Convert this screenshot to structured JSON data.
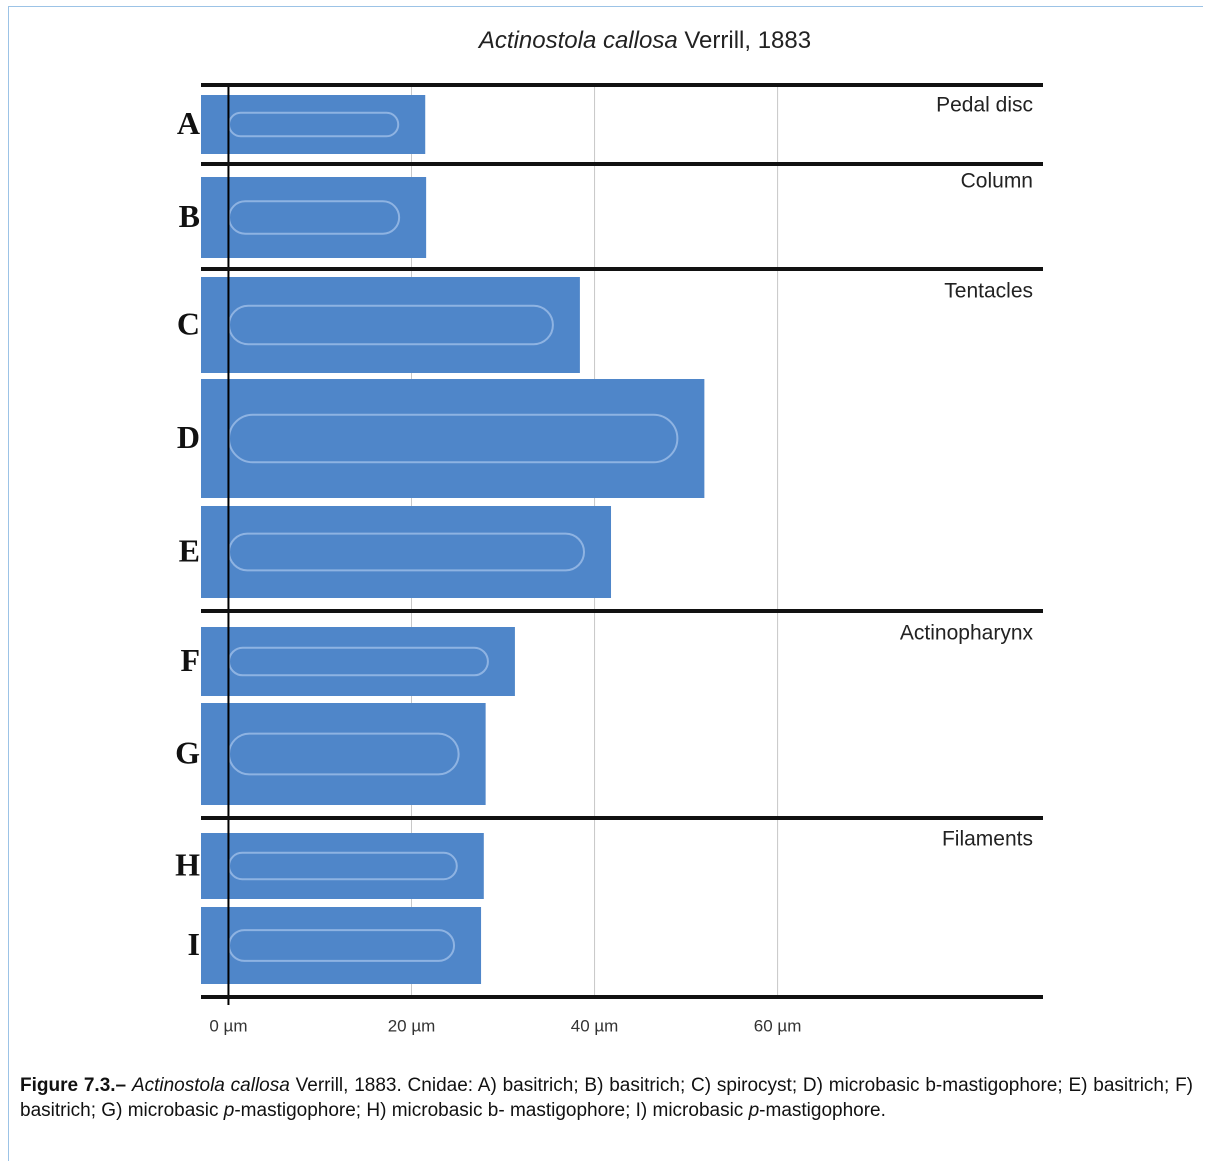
{
  "chart_data": {
    "type": "bar",
    "orientation": "horizontal",
    "title": [
      "Actinostola callosa",
      "Verrill, 1883"
    ],
    "color": "#4f86c9",
    "groups": [
      {
        "label": "Pedal disc",
        "categories": [
          "A"
        ],
        "values": [
          21.5
        ]
      },
      {
        "label": "Column",
        "categories": [
          "B"
        ],
        "values": [
          21.6
        ]
      },
      {
        "label": "Tentacles",
        "categories": [
          "C",
          "D",
          "E"
        ],
        "values": [
          38.4,
          52,
          41.8
        ]
      },
      {
        "label": "Actinopharynx",
        "categories": [
          "F",
          "G"
        ],
        "values": [
          31.3,
          28.1
        ]
      },
      {
        "label": "Filaments",
        "categories": [
          "H",
          "I"
        ],
        "values": [
          27.9,
          27.6
        ]
      }
    ],
    "xlim": [
      -3,
      89
    ],
    "xticks": [
      {
        "value": 0,
        "label": "0 µm"
      },
      {
        "value": 20,
        "label": "20 µm"
      },
      {
        "value": 40,
        "label": "40 µm"
      },
      {
        "value": 60,
        "label": "60 µm"
      }
    ],
    "grid": true
  },
  "caption": [
    "Figure 7.3.–",
    "Actinostola callosa",
    " Verrill, 1883. Cnidae: A) basitrich; B) basitrich; C) spirocyst; D) microbasic b-mastigophore; E) basitrich; F) basitrich; G) microbasic ",
    "p",
    "-mastigophore; H) microbasic b- mastigophore; I) microbasic ",
    "p",
    "-mastigophore."
  ]
}
